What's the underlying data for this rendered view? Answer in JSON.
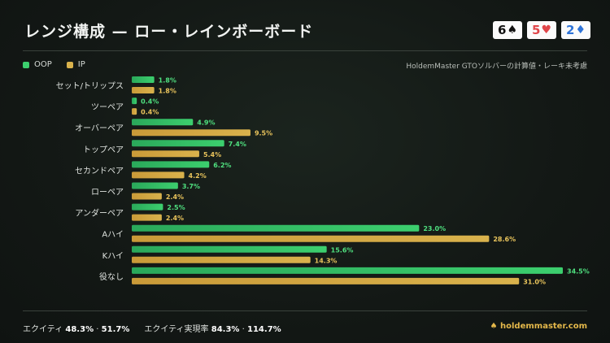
{
  "header": {
    "title": "レンジ構成 — ロー・レインボーボード",
    "cards": [
      {
        "rank": "6",
        "suit": "♠",
        "color": "#111111"
      },
      {
        "rank": "5",
        "suit": "♥",
        "color": "#e0464a"
      },
      {
        "rank": "2",
        "suit": "♦",
        "color": "#2f74d8"
      }
    ]
  },
  "legend": {
    "oop": "OOP",
    "ip": "IP",
    "note": "HoldemMaster GTOソルバーの計算値・レーキ未考慮"
  },
  "colors": {
    "oop": "#3ccf6e",
    "ip": "#d9b24c",
    "oop_text": "#4fe07f",
    "ip_text": "#e9c45c"
  },
  "chart_data": {
    "type": "bar",
    "orientation": "horizontal",
    "categories": [
      "セット/トリップス",
      "ツーペア",
      "オーバーペア",
      "トップペア",
      "セカンドペア",
      "ローペア",
      "アンダーペア",
      "Aハイ",
      "Kハイ",
      "役なし"
    ],
    "series": [
      {
        "name": "OOP",
        "values": [
          1.8,
          0.4,
          4.9,
          7.4,
          6.2,
          3.7,
          2.5,
          23.0,
          15.6,
          34.5
        ],
        "labels": [
          "1.8%",
          "0.4%",
          "4.9%",
          "7.4%",
          "6.2%",
          "3.7%",
          "2.5%",
          "23.0%",
          "15.6%",
          "34.5%"
        ]
      },
      {
        "name": "IP",
        "values": [
          1.8,
          0.4,
          9.5,
          5.4,
          4.2,
          2.4,
          2.4,
          28.6,
          14.3,
          31.0
        ],
        "labels": [
          "1.8%",
          "0.4%",
          "9.5%",
          "5.4%",
          "4.2%",
          "2.4%",
          "2.4%",
          "28.6%",
          "14.3%",
          "31.0%"
        ]
      }
    ],
    "xlim": [
      0,
      34.5
    ],
    "grid": false,
    "legend_position": "top-left"
  },
  "footer": {
    "equity_label": "エクイティ",
    "equity_oop": "48.3%",
    "sep1": "·",
    "equity_ip": "51.7%",
    "realization_label": "エクイティ実現率",
    "real_oop": "84.3%",
    "sep2": "·",
    "real_ip": "114.7%",
    "brand": "♠ holdemmaster.com"
  }
}
